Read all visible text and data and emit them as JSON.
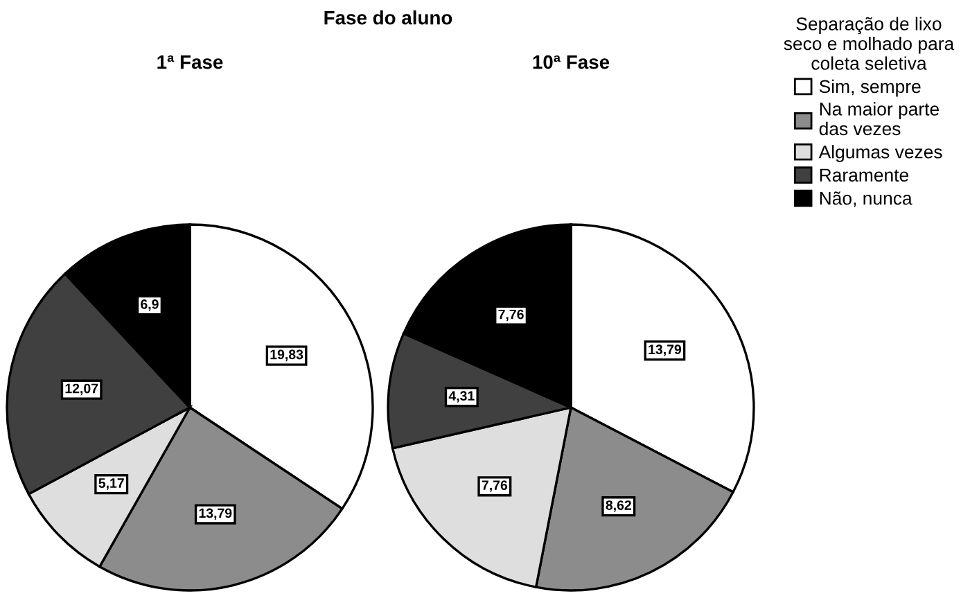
{
  "chart_data": [
    {
      "type": "pie",
      "title": "1ª Fase",
      "annotations": [
        "Fase do aluno"
      ],
      "legend_title": "Separação de lixo\nseco e molhado para\ncoleta seletiva",
      "legend": "top right",
      "categories": [
        "Sim, sempre",
        "Na maior parte\ndas vezes",
        "Algumas vezes",
        "Raramente",
        "Não, nunca"
      ],
      "values": [
        19.83,
        13.79,
        5.17,
        12.07,
        6.9
      ],
      "value_labels": [
        "19,83",
        "13,79",
        "5,17",
        "12,07",
        "6,9"
      ],
      "colors": [
        "#ffffff",
        "#8c8c8c",
        "#dedede",
        "#404040",
        "#000000"
      ]
    },
    {
      "type": "pie",
      "title": "10ª Fase",
      "categories": [
        null,
        null,
        null,
        null,
        null
      ],
      "values": [
        13.79,
        8.62,
        7.76,
        4.31,
        7.76
      ],
      "value_labels": [
        "13,79",
        "8,62",
        "7,76",
        "4,31",
        "7,76"
      ],
      "colors": [
        "#ffffff",
        "#8c8c8c",
        "#dedede",
        "#404040",
        "#000000"
      ]
    }
  ]
}
